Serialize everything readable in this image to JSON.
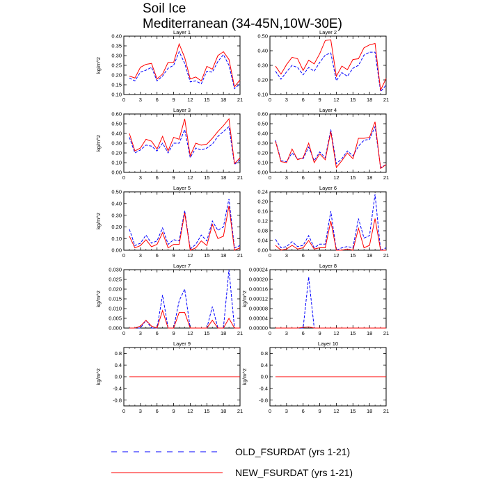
{
  "figure": {
    "title_line1": "Soil Ice",
    "title_line2": "Mediterranean (34-45N,10W-30E)"
  },
  "legend": {
    "old_label": "OLD_FSURDAT (yrs 1-21)",
    "new_label": "NEW_FSURDAT (yrs 1-21)",
    "old_color": "#0000ff",
    "new_color": "#ff0000"
  },
  "chart_data": [
    {
      "type": "line",
      "title": "Layer 1",
      "ylabel": "kg/m^2",
      "xlim": [
        0,
        21
      ],
      "xticks": [
        "0",
        "3",
        "6",
        "9",
        "12",
        "15",
        "18",
        "21"
      ],
      "ylim": [
        0.1,
        0.4
      ],
      "yticks": [
        "0.10",
        "0.15",
        "0.20",
        "0.25",
        "0.30",
        "0.35",
        "0.40"
      ],
      "x": [
        1,
        2,
        3,
        4,
        5,
        6,
        7,
        8,
        9,
        10,
        11,
        12,
        13,
        14,
        15,
        16,
        17,
        18,
        19,
        20,
        21
      ],
      "series": [
        {
          "name": "OLD_FSURDAT (yrs 1-21)",
          "values": [
            0.185,
            0.17,
            0.215,
            0.225,
            0.24,
            0.17,
            0.195,
            0.235,
            0.25,
            0.32,
            0.26,
            0.165,
            0.17,
            0.155,
            0.22,
            0.215,
            0.27,
            0.305,
            0.25,
            0.13,
            0.155
          ]
        },
        {
          "name": "NEW_FSURDAT (yrs 1-21)",
          "values": [
            0.195,
            0.185,
            0.24,
            0.255,
            0.26,
            0.18,
            0.205,
            0.265,
            0.265,
            0.36,
            0.29,
            0.18,
            0.19,
            0.17,
            0.245,
            0.23,
            0.3,
            0.32,
            0.28,
            0.14,
            0.175
          ]
        }
      ]
    },
    {
      "type": "line",
      "title": "Layer 2",
      "ylabel": "",
      "xlim": [
        0,
        21
      ],
      "xticks": [
        "0",
        "3",
        "6",
        "9",
        "12",
        "15",
        "18",
        "21"
      ],
      "ylim": [
        0.1,
        0.5
      ],
      "yticks": [
        "0.10",
        "0.20",
        "0.30",
        "0.40",
        "0.50"
      ],
      "x": [
        1,
        2,
        3,
        4,
        5,
        6,
        7,
        8,
        9,
        10,
        11,
        12,
        13,
        14,
        15,
        16,
        17,
        18,
        19,
        20,
        21
      ],
      "series": [
        {
          "name": "OLD_FSURDAT (yrs 1-21)",
          "values": [
            0.26,
            0.205,
            0.255,
            0.3,
            0.285,
            0.235,
            0.285,
            0.26,
            0.32,
            0.37,
            0.385,
            0.195,
            0.25,
            0.225,
            0.28,
            0.3,
            0.37,
            0.39,
            0.39,
            0.12,
            0.165
          ]
        },
        {
          "name": "NEW_FSURDAT (yrs 1-21)",
          "values": [
            0.295,
            0.24,
            0.305,
            0.355,
            0.345,
            0.265,
            0.335,
            0.31,
            0.38,
            0.47,
            0.475,
            0.225,
            0.295,
            0.27,
            0.34,
            0.345,
            0.42,
            0.44,
            0.45,
            0.13,
            0.21
          ]
        }
      ]
    },
    {
      "type": "line",
      "title": "Layer 3",
      "ylabel": "kg/m^2",
      "xlim": [
        0,
        21
      ],
      "xticks": [
        "0",
        "3",
        "6",
        "9",
        "12",
        "15",
        "18",
        "21"
      ],
      "ylim": [
        0.0,
        0.6
      ],
      "yticks": [
        "0.00",
        "0.10",
        "0.20",
        "0.30",
        "0.40",
        "0.50",
        "0.60"
      ],
      "x": [
        1,
        2,
        3,
        4,
        5,
        6,
        7,
        8,
        9,
        10,
        11,
        12,
        13,
        14,
        15,
        16,
        17,
        18,
        19,
        20,
        21
      ],
      "series": [
        {
          "name": "OLD_FSURDAT (yrs 1-21)",
          "values": [
            0.36,
            0.2,
            0.23,
            0.28,
            0.27,
            0.22,
            0.3,
            0.2,
            0.3,
            0.3,
            0.44,
            0.15,
            0.25,
            0.23,
            0.25,
            0.29,
            0.37,
            0.42,
            0.47,
            0.08,
            0.13
          ]
        },
        {
          "name": "NEW_FSURDAT (yrs 1-21)",
          "values": [
            0.4,
            0.22,
            0.25,
            0.34,
            0.32,
            0.24,
            0.37,
            0.22,
            0.36,
            0.34,
            0.55,
            0.17,
            0.3,
            0.28,
            0.29,
            0.35,
            0.42,
            0.48,
            0.55,
            0.09,
            0.15
          ]
        }
      ]
    },
    {
      "type": "line",
      "title": "Layer 4",
      "ylabel": "",
      "xlim": [
        0,
        21
      ],
      "xticks": [
        "0",
        "3",
        "6",
        "9",
        "12",
        "15",
        "18",
        "21"
      ],
      "ylim": [
        0.0,
        0.6
      ],
      "yticks": [
        "0.00",
        "0.10",
        "0.20",
        "0.30",
        "0.40",
        "0.50",
        "0.60"
      ],
      "x": [
        1,
        2,
        3,
        4,
        5,
        6,
        7,
        8,
        9,
        10,
        11,
        12,
        13,
        14,
        15,
        16,
        17,
        18,
        19,
        20,
        21
      ],
      "series": [
        {
          "name": "OLD_FSURDAT (yrs 1-21)",
          "values": [
            0.33,
            0.12,
            0.11,
            0.2,
            0.14,
            0.14,
            0.26,
            0.12,
            0.21,
            0.15,
            0.44,
            0.09,
            0.14,
            0.22,
            0.17,
            0.27,
            0.33,
            0.34,
            0.47,
            0.05,
            0.08
          ]
        },
        {
          "name": "NEW_FSURDAT (yrs 1-21)",
          "values": [
            0.32,
            0.11,
            0.1,
            0.24,
            0.13,
            0.15,
            0.3,
            0.1,
            0.19,
            0.13,
            0.42,
            0.05,
            0.12,
            0.2,
            0.14,
            0.35,
            0.35,
            0.36,
            0.52,
            0.04,
            0.08
          ]
        }
      ]
    },
    {
      "type": "line",
      "title": "Layer 5",
      "ylabel": "kg/m^2",
      "xlim": [
        0,
        21
      ],
      "xticks": [
        "0",
        "3",
        "6",
        "9",
        "12",
        "15",
        "18",
        "21"
      ],
      "ylim": [
        0.0,
        0.5
      ],
      "yticks": [
        "0.00",
        "0.10",
        "0.20",
        "0.30",
        "0.40",
        "0.50"
      ],
      "x": [
        1,
        2,
        3,
        4,
        5,
        6,
        7,
        8,
        9,
        10,
        11,
        12,
        13,
        14,
        15,
        16,
        17,
        18,
        19,
        20,
        21
      ],
      "series": [
        {
          "name": "OLD_FSURDAT (yrs 1-21)",
          "values": [
            0.18,
            0.04,
            0.06,
            0.13,
            0.06,
            0.08,
            0.19,
            0.05,
            0.09,
            0.08,
            0.34,
            0.01,
            0.05,
            0.13,
            0.08,
            0.25,
            0.17,
            0.2,
            0.44,
            0.02,
            0.04
          ]
        },
        {
          "name": "NEW_FSURDAT (yrs 1-21)",
          "values": [
            0.12,
            0.02,
            0.04,
            0.09,
            0.03,
            0.05,
            0.15,
            0.02,
            0.05,
            0.05,
            0.32,
            0.0,
            0.02,
            0.08,
            0.04,
            0.22,
            0.1,
            0.12,
            0.38,
            0.0,
            0.02
          ]
        }
      ]
    },
    {
      "type": "line",
      "title": "Layer 6",
      "ylabel": "",
      "xlim": [
        0,
        21
      ],
      "xticks": [
        "0",
        "3",
        "6",
        "9",
        "12",
        "15",
        "18",
        "21"
      ],
      "ylim": [
        0.0,
        0.24
      ],
      "yticks": [
        "0.00",
        "0.04",
        "0.08",
        "0.12",
        "0.16",
        "0.20",
        "0.24"
      ],
      "x": [
        1,
        2,
        3,
        4,
        5,
        6,
        7,
        8,
        9,
        10,
        11,
        12,
        13,
        14,
        15,
        16,
        17,
        18,
        19,
        20,
        21
      ],
      "series": [
        {
          "name": "OLD_FSURDAT (yrs 1-21)",
          "values": [
            0.045,
            0.01,
            0.015,
            0.035,
            0.015,
            0.02,
            0.06,
            0.01,
            0.025,
            0.025,
            0.16,
            0.0,
            0.01,
            0.015,
            0.01,
            0.13,
            0.05,
            0.06,
            0.23,
            0.0,
            0.01
          ]
        },
        {
          "name": "NEW_FSURDAT (yrs 1-21)",
          "values": [
            0.02,
            0.0,
            0.005,
            0.02,
            0.005,
            0.01,
            0.04,
            0.005,
            0.01,
            0.01,
            0.12,
            0.0,
            0.0,
            0.005,
            0.0,
            0.09,
            0.01,
            0.02,
            0.13,
            0.0,
            0.0
          ]
        }
      ]
    },
    {
      "type": "line",
      "title": "Layer 7",
      "ylabel": "kg/m^2",
      "xlim": [
        0,
        21
      ],
      "xticks": [
        "0",
        "3",
        "6",
        "9",
        "12",
        "15",
        "18",
        "21"
      ],
      "ylim": [
        0.0,
        0.03
      ],
      "yticks": [
        "0.000",
        "0.005",
        "0.010",
        "0.015",
        "0.020",
        "0.025",
        "0.030"
      ],
      "x": [
        1,
        2,
        3,
        4,
        5,
        6,
        7,
        8,
        9,
        10,
        11,
        12,
        13,
        14,
        15,
        16,
        17,
        18,
        19,
        20,
        21
      ],
      "series": [
        {
          "name": "OLD_FSURDAT (yrs 1-21)",
          "values": [
            0.0,
            0.0,
            0.0,
            0.004,
            0.0,
            0.0,
            0.017,
            0.0,
            0.0,
            0.014,
            0.02,
            0.0,
            0.0,
            0.0,
            0.0,
            0.011,
            0.0,
            0.0,
            0.03,
            0.0,
            0.0
          ]
        },
        {
          "name": "NEW_FSURDAT (yrs 1-21)",
          "values": [
            0.0,
            0.0,
            0.001,
            0.004,
            0.001,
            0.0,
            0.009,
            0.0,
            0.0,
            0.008,
            0.008,
            0.0,
            0.0,
            0.0,
            0.0,
            0.004,
            0.0,
            0.0,
            0.005,
            0.0,
            0.0
          ]
        }
      ]
    },
    {
      "type": "line",
      "title": "Layer 8",
      "ylabel": "kg/m^2",
      "xlim": [
        0,
        21
      ],
      "xticks": [
        "0",
        "3",
        "6",
        "9",
        "12",
        "15",
        "18",
        "21"
      ],
      "ylim": [
        0.0,
        0.00024
      ],
      "yticks": [
        "0.00000",
        "0.00004",
        "0.00008",
        "0.00012",
        "0.00016",
        "0.00020",
        "0.00024"
      ],
      "x": [
        1,
        2,
        3,
        4,
        5,
        6,
        7,
        8,
        9,
        10,
        11,
        12,
        13,
        14,
        15,
        16,
        17,
        18,
        19,
        20,
        21
      ],
      "series": [
        {
          "name": "OLD_FSURDAT (yrs 1-21)",
          "values": [
            0,
            0,
            0,
            0,
            0,
            0,
            0.00021,
            0,
            0,
            0,
            0,
            0,
            0,
            0,
            0,
            0,
            0,
            0,
            0,
            0,
            0
          ]
        },
        {
          "name": "NEW_FSURDAT (yrs 1-21)",
          "values": [
            0,
            0,
            0,
            0,
            0,
            3e-06,
            5e-06,
            0,
            0,
            0,
            0,
            0,
            0,
            0,
            0,
            0,
            0,
            0,
            0,
            0,
            0
          ]
        }
      ]
    },
    {
      "type": "line",
      "title": "Layer 9",
      "ylabel": "kg/m^2",
      "xlim": [
        0,
        21
      ],
      "xticks": [
        "0",
        "3",
        "6",
        "9",
        "12",
        "15",
        "18",
        "21"
      ],
      "ylim": [
        -1.0,
        1.0
      ],
      "yticks": [
        "-0.8",
        "-0.4",
        "0.0",
        "0.4",
        "0.8"
      ],
      "ytick_values": [
        -0.8,
        -0.4,
        0.0,
        0.4,
        0.8
      ],
      "x": [
        1,
        2,
        3,
        4,
        5,
        6,
        7,
        8,
        9,
        10,
        11,
        12,
        13,
        14,
        15,
        16,
        17,
        18,
        19,
        20,
        21
      ],
      "series": [
        {
          "name": "OLD_FSURDAT (yrs 1-21)",
          "values": [
            0,
            0,
            0,
            0,
            0,
            0,
            0,
            0,
            0,
            0,
            0,
            0,
            0,
            0,
            0,
            0,
            0,
            0,
            0,
            0,
            0
          ]
        },
        {
          "name": "NEW_FSURDAT (yrs 1-21)",
          "values": [
            0,
            0,
            0,
            0,
            0,
            0,
            0,
            0,
            0,
            0,
            0,
            0,
            0,
            0,
            0,
            0,
            0,
            0,
            0,
            0,
            0
          ]
        }
      ]
    },
    {
      "type": "line",
      "title": "Layer 10",
      "ylabel": "kg/m^2",
      "xlim": [
        0,
        21
      ],
      "xticks": [
        "0",
        "3",
        "6",
        "9",
        "12",
        "15",
        "18",
        "21"
      ],
      "ylim": [
        -1.0,
        1.0
      ],
      "yticks": [
        "-0.8",
        "-0.4",
        "0.0",
        "0.4",
        "0.8"
      ],
      "ytick_values": [
        -0.8,
        -0.4,
        0.0,
        0.4,
        0.8
      ],
      "x": [
        1,
        2,
        3,
        4,
        5,
        6,
        7,
        8,
        9,
        10,
        11,
        12,
        13,
        14,
        15,
        16,
        17,
        18,
        19,
        20,
        21
      ],
      "series": [
        {
          "name": "OLD_FSURDAT (yrs 1-21)",
          "values": [
            0,
            0,
            0,
            0,
            0,
            0,
            0,
            0,
            0,
            0,
            0,
            0,
            0,
            0,
            0,
            0,
            0,
            0,
            0,
            0,
            0
          ]
        },
        {
          "name": "NEW_FSURDAT (yrs 1-21)",
          "values": [
            0,
            0,
            0,
            0,
            0,
            0,
            0,
            0,
            0,
            0,
            0,
            0,
            0,
            0,
            0,
            0,
            0,
            0,
            0,
            0,
            0
          ]
        }
      ]
    }
  ]
}
